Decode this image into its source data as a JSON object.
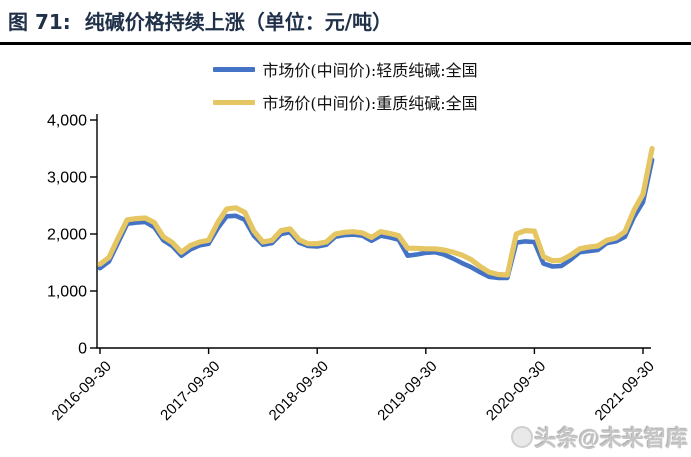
{
  "figure": {
    "title_prefix": "图 71:",
    "title_text": "纯碱价格持续上涨（单位：元/吨）"
  },
  "watermark": {
    "text": "头条@未来智库"
  },
  "colors": {
    "title": "#1f3048",
    "axis": "#000000",
    "light_series": "#4472C4",
    "heavy_series": "#E5C663",
    "watermark": "#c6c6c6"
  },
  "chart_data": {
    "type": "line",
    "title": "纯碱价格持续上涨（单位：元/吨）",
    "unit": "元/吨",
    "grid": false,
    "legend_position": "top-center",
    "ylim": [
      0,
      4000
    ],
    "yticks": [
      0,
      1000,
      2000,
      3000,
      4000
    ],
    "ytick_labels": [
      "0",
      "1,000",
      "2,000",
      "3,000",
      "4,000"
    ],
    "xtick_dates": [
      "2016-09-30",
      "2017-09-30",
      "2018-09-30",
      "2019-09-30",
      "2020-09-30",
      "2021-09-30"
    ],
    "xtick_month_index": [
      0,
      12,
      24,
      36,
      48,
      60
    ],
    "x_months": [
      "2016-09",
      "2016-10",
      "2016-11",
      "2016-12",
      "2017-01",
      "2017-02",
      "2017-03",
      "2017-04",
      "2017-05",
      "2017-06",
      "2017-07",
      "2017-08",
      "2017-09",
      "2017-10",
      "2017-11",
      "2017-12",
      "2018-01",
      "2018-02",
      "2018-03",
      "2018-04",
      "2018-05",
      "2018-06",
      "2018-07",
      "2018-08",
      "2018-09",
      "2018-10",
      "2018-11",
      "2018-12",
      "2019-01",
      "2019-02",
      "2019-03",
      "2019-04",
      "2019-05",
      "2019-06",
      "2019-07",
      "2019-08",
      "2019-09",
      "2019-10",
      "2019-11",
      "2019-12",
      "2020-01",
      "2020-02",
      "2020-03",
      "2020-04",
      "2020-05",
      "2020-06",
      "2020-07",
      "2020-08",
      "2020-09",
      "2020-10",
      "2020-11",
      "2020-12",
      "2021-01",
      "2021-02",
      "2021-03",
      "2021-04",
      "2021-05",
      "2021-06",
      "2021-07",
      "2021-08",
      "2021-09",
      "2021-10"
    ],
    "series": [
      {
        "name": "市场价(中间价):轻质纯碱:全国",
        "color": "#4472C4",
        "values": [
          1400,
          1520,
          1850,
          2180,
          2200,
          2210,
          2120,
          1890,
          1790,
          1620,
          1730,
          1800,
          1830,
          2100,
          2310,
          2320,
          2250,
          1970,
          1810,
          1840,
          2000,
          2030,
          1850,
          1790,
          1780,
          1810,
          1950,
          1980,
          1990,
          1970,
          1880,
          1970,
          1940,
          1900,
          1620,
          1640,
          1670,
          1680,
          1640,
          1570,
          1490,
          1420,
          1330,
          1250,
          1230,
          1230,
          1850,
          1870,
          1860,
          1480,
          1430,
          1440,
          1550,
          1680,
          1700,
          1720,
          1840,
          1870,
          1950,
          2300,
          2560,
          3300
        ]
      },
      {
        "name": "市场价(中间价):重质纯碱:全国",
        "color": "#E5C663",
        "values": [
          1470,
          1590,
          1930,
          2250,
          2270,
          2280,
          2200,
          1950,
          1850,
          1680,
          1800,
          1860,
          1890,
          2200,
          2440,
          2460,
          2380,
          2050,
          1860,
          1890,
          2060,
          2090,
          1900,
          1830,
          1830,
          1860,
          2000,
          2030,
          2040,
          2020,
          1940,
          2040,
          2010,
          1970,
          1750,
          1750,
          1740,
          1740,
          1720,
          1680,
          1630,
          1550,
          1430,
          1330,
          1290,
          1280,
          2000,
          2060,
          2050,
          1600,
          1530,
          1540,
          1630,
          1740,
          1770,
          1790,
          1890,
          1930,
          2040,
          2420,
          2700,
          3500
        ]
      }
    ]
  }
}
